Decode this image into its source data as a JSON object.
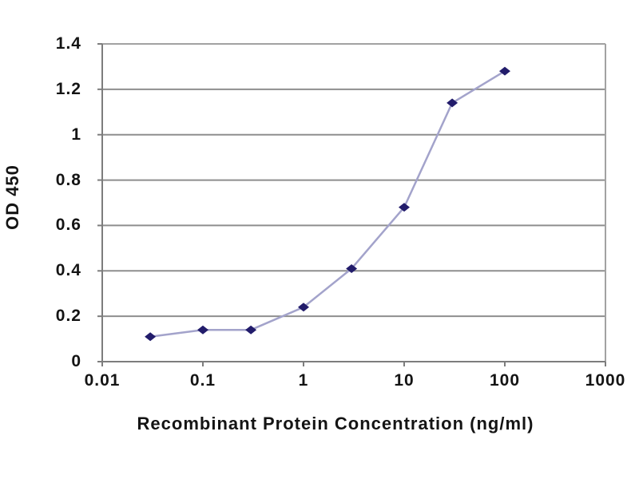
{
  "chart_data": {
    "type": "line",
    "title": "",
    "xlabel": "Recombinant Protein Concentration (ng/ml)",
    "ylabel": "OD 450",
    "x_scale": "log",
    "y_scale": "linear",
    "xlim": [
      0.01,
      1000
    ],
    "ylim": [
      0,
      1.4
    ],
    "x": [
      0.03,
      0.1,
      0.3,
      1,
      3,
      10,
      30,
      100
    ],
    "series": [
      {
        "name": "OD 450",
        "values": [
          0.11,
          0.14,
          0.14,
          0.24,
          0.41,
          0.68,
          1.14,
          1.28
        ],
        "line_color": "#a3a3cb",
        "marker": "diamond",
        "marker_color": "#221c6b"
      }
    ],
    "x_tick_values": [
      0.01,
      0.1,
      1,
      10,
      100,
      1000
    ],
    "x_tick_labels": [
      "0.01",
      "0.1",
      "1",
      "10",
      "100",
      "1000"
    ],
    "y_tick_values": [
      0,
      0.2,
      0.4,
      0.6,
      0.8,
      1,
      1.2,
      1.4
    ],
    "y_tick_labels": [
      "0",
      "0.2",
      "0.4",
      "0.6",
      "0.8",
      "1",
      "1.2",
      "1.4"
    ],
    "grid": "horizontal",
    "legend_position": "none",
    "colors": {
      "grid": "#8e8e8e",
      "axis": "#7d7d7d",
      "border": "#a2a2a2",
      "text": "#141414",
      "background": "#ffffff"
    }
  }
}
